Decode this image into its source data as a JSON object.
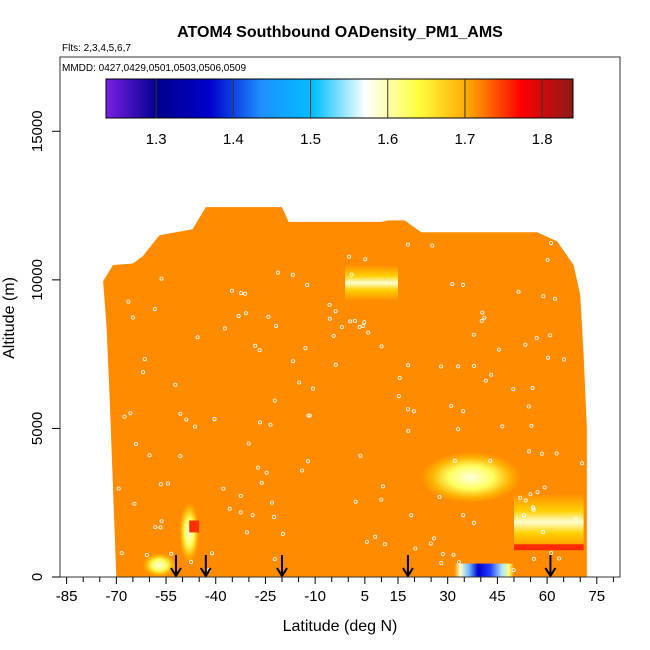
{
  "chart_data": {
    "type": "heatmap",
    "title": "ATOM4 Southbound OADensity_PM1_AMS",
    "subtitle_flights": "Flts: 2,3,4,5,6,7",
    "subtitle_dates": "MMDD: 0427,0429,0501,0503,0506,0509",
    "xlabel": "Latitude (deg N)",
    "ylabel": "Altitude (m)",
    "xlim": [
      -87,
      82
    ],
    "ylim": [
      0,
      17500
    ],
    "x_ticks": [
      -85,
      -70,
      -55,
      -40,
      -25,
      -10,
      5,
      15,
      30,
      45,
      60,
      75
    ],
    "y_ticks": [
      0,
      5000,
      10000,
      15000
    ],
    "colorbar": {
      "range": [
        1.235,
        1.84
      ],
      "ticks": [
        1.3,
        1.4,
        1.5,
        1.6,
        1.7,
        1.8
      ],
      "colors": [
        "#7a1fe6",
        "#00008b",
        "#0000cd",
        "#1e90ff",
        "#00bfff",
        "#ffffff",
        "#ffff40",
        "#ffa500",
        "#ff0000",
        "#8b1a1a"
      ]
    },
    "background_value": 1.68,
    "background_color": "#ff8c00",
    "profile_envelope": [
      [
        -74,
        9950
      ],
      [
        -71,
        10500
      ],
      [
        -65,
        10550
      ],
      [
        -62,
        10800
      ],
      [
        -57,
        11500
      ],
      [
        -52,
        11600
      ],
      [
        -47,
        11700
      ],
      [
        -43,
        12450
      ],
      [
        -20,
        12450
      ],
      [
        -18,
        11950
      ],
      [
        10,
        11950
      ],
      [
        12,
        12000
      ],
      [
        17,
        12000
      ],
      [
        22,
        11600
      ],
      [
        33,
        11600
      ],
      [
        57,
        11600
      ],
      [
        63,
        11300
      ],
      [
        68,
        10500
      ],
      [
        70,
        9500
      ],
      [
        71,
        7500
      ],
      [
        72,
        5000
      ],
      [
        72,
        0
      ],
      [
        -70,
        0
      ],
      [
        -71,
        3000
      ],
      [
        -72,
        6000
      ],
      [
        -73,
        8500
      ]
    ],
    "features": [
      {
        "lat_range": [
          -51,
          -45
        ],
        "alt_range": [
          500,
          2500
        ],
        "value": 1.6,
        "label": "southern low-level light patch"
      },
      {
        "lat_range": [
          -48,
          -45
        ],
        "alt_range": [
          1500,
          1900
        ],
        "value": 1.75,
        "label": "southern red spot"
      },
      {
        "lat_range": [
          -62,
          -52
        ],
        "alt_range": [
          0,
          800
        ],
        "value": 1.62,
        "label": "southern surface patch"
      },
      {
        "lat_range": [
          -1,
          15
        ],
        "alt_range": [
          9300,
          10500
        ],
        "value": 1.61,
        "label": "upper tropical patch"
      },
      {
        "lat_range": [
          22,
          52
        ],
        "alt_range": [
          2500,
          4200
        ],
        "value": 1.58,
        "label": "northern mid-level patch"
      },
      {
        "lat_range": [
          50,
          71
        ],
        "alt_range": [
          900,
          2800
        ],
        "value": 1.62,
        "label": "northern low-level patch"
      },
      {
        "lat_range": [
          50,
          71
        ],
        "alt_range": [
          900,
          1100
        ],
        "value": 1.76,
        "label": "northern red band"
      },
      {
        "lat_range": [
          32,
          50
        ],
        "alt_range": [
          0,
          450
        ],
        "value": 1.45,
        "label": "northern surface blue patch"
      }
    ],
    "arrow_latitudes": [
      -52,
      -43,
      -20,
      18,
      61
    ]
  }
}
